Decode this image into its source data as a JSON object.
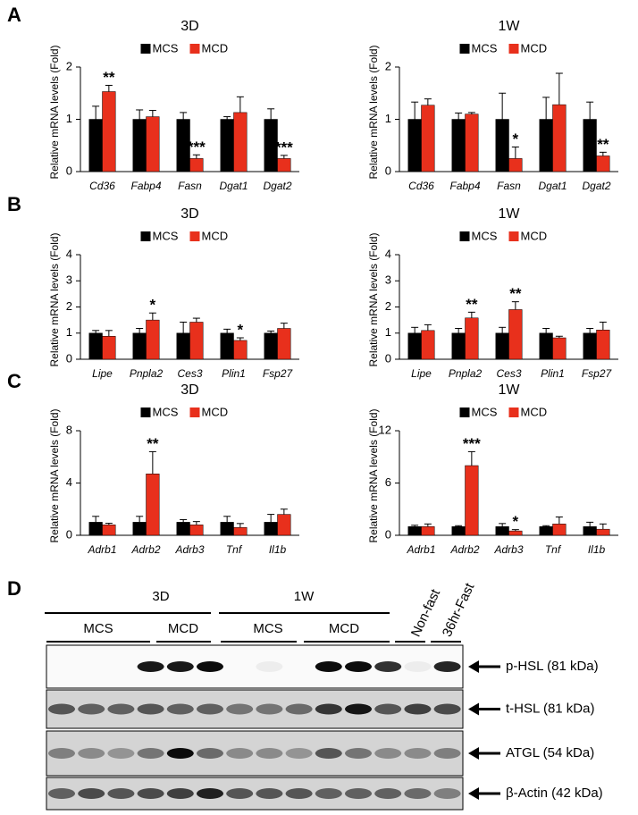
{
  "panels": [
    "A",
    "B",
    "C",
    "D"
  ],
  "chart_data": [
    {
      "type": "bar",
      "title": "3D",
      "ylabel": "Relative mRNA levels (Fold)",
      "categories": [
        "Cd36",
        "Fabp4",
        "Fasn",
        "Dgat1",
        "Dgat2"
      ],
      "ylim": [
        0,
        2
      ],
      "yticks": [
        0,
        1,
        2
      ],
      "series": [
        {
          "name": "MCS",
          "color": "#000000",
          "values": [
            1,
            1,
            1,
            1,
            1
          ],
          "errors": [
            0.25,
            0.18,
            0.13,
            0.05,
            0.2
          ]
        },
        {
          "name": "MCD",
          "color": "#e8301c",
          "values": [
            1.53,
            1.05,
            0.25,
            1.13,
            0.25
          ],
          "errors": [
            0.12,
            0.12,
            0.07,
            0.3,
            0.06
          ],
          "labels": [
            "**",
            null,
            "***",
            null,
            "***"
          ]
        }
      ]
    },
    {
      "type": "bar",
      "title": "1W",
      "ylabel": "Relative mRNA levels (Fold)",
      "categories": [
        "Cd36",
        "Fabp4",
        "Fasn",
        "Dgat1",
        "Dgat2"
      ],
      "ylim": [
        0,
        2
      ],
      "yticks": [
        0,
        1,
        2
      ],
      "series": [
        {
          "name": "MCS",
          "color": "#000000",
          "values": [
            1,
            1,
            1,
            1,
            1
          ],
          "errors": [
            0.33,
            0.12,
            0.5,
            0.42,
            0.33
          ]
        },
        {
          "name": "MCD",
          "color": "#e8301c",
          "values": [
            1.27,
            1.1,
            0.25,
            1.28,
            0.3
          ],
          "errors": [
            0.12,
            0.03,
            0.22,
            0.6,
            0.07
          ],
          "labels": [
            null,
            null,
            "*",
            null,
            "**"
          ]
        }
      ]
    },
    {
      "type": "bar",
      "title": "3D",
      "ylabel": "Relative mRNA levels (Fold)",
      "categories": [
        "Lipe",
        "Pnpla2",
        "Ces3",
        "Plin1",
        "Fsp27"
      ],
      "ylim": [
        0,
        4
      ],
      "yticks": [
        0,
        1,
        2,
        3,
        4
      ],
      "series": [
        {
          "name": "MCS",
          "color": "#000000",
          "values": [
            1,
            1,
            1,
            1,
            1
          ],
          "errors": [
            0.1,
            0.18,
            0.42,
            0.15,
            0.08
          ]
        },
        {
          "name": "MCD",
          "color": "#e8301c",
          "values": [
            0.88,
            1.5,
            1.42,
            0.72,
            1.18
          ],
          "errors": [
            0.22,
            0.27,
            0.15,
            0.1,
            0.2
          ],
          "labels": [
            null,
            "*",
            null,
            "*",
            null
          ]
        }
      ]
    },
    {
      "type": "bar",
      "title": "1W",
      "ylabel": "Relative mRNA levels (Fold)",
      "categories": [
        "Lipe",
        "Pnpla2",
        "Ces3",
        "Plin1",
        "Fsp27"
      ],
      "ylim": [
        0,
        4
      ],
      "yticks": [
        0,
        1,
        2,
        3,
        4
      ],
      "series": [
        {
          "name": "MCS",
          "color": "#000000",
          "values": [
            1,
            1,
            1,
            1,
            1
          ],
          "errors": [
            0.22,
            0.18,
            0.22,
            0.18,
            0.18
          ]
        },
        {
          "name": "MCD",
          "color": "#e8301c",
          "values": [
            1.1,
            1.58,
            1.9,
            0.82,
            1.12
          ],
          "errors": [
            0.22,
            0.22,
            0.3,
            0.06,
            0.3
          ],
          "labels": [
            null,
            "**",
            "**",
            null,
            null
          ]
        }
      ]
    },
    {
      "type": "bar",
      "title": "3D",
      "ylabel": "Relative mRNA levels (Fold)",
      "categories": [
        "Adrb1",
        "Adrb2",
        "Adrb3",
        "Tnf",
        "Il1b"
      ],
      "ylim": [
        0,
        8
      ],
      "yticks": [
        0,
        4,
        8
      ],
      "series": [
        {
          "name": "MCS",
          "color": "#000000",
          "values": [
            1,
            1,
            1,
            1,
            1
          ],
          "errors": [
            0.45,
            0.45,
            0.2,
            0.45,
            0.6
          ]
        },
        {
          "name": "MCD",
          "color": "#e8301c",
          "values": [
            0.8,
            4.7,
            0.8,
            0.6,
            1.6
          ],
          "errors": [
            0.12,
            1.7,
            0.25,
            0.3,
            0.4
          ],
          "labels": [
            null,
            "**",
            null,
            null,
            null
          ]
        }
      ]
    },
    {
      "type": "bar",
      "title": "1W",
      "ylabel": "Relative mRNA levels (Fold)",
      "categories": [
        "Adrb1",
        "Adrb2",
        "Adrb3",
        "Tnf",
        "Il1b"
      ],
      "ylim": [
        0,
        12
      ],
      "yticks": [
        0,
        6,
        12
      ],
      "series": [
        {
          "name": "MCS",
          "color": "#000000",
          "values": [
            1,
            1,
            1,
            1,
            1
          ],
          "errors": [
            0.15,
            0.1,
            0.35,
            0.1,
            0.5
          ]
        },
        {
          "name": "MCD",
          "color": "#e8301c",
          "values": [
            1,
            8,
            0.5,
            1.3,
            0.7
          ],
          "errors": [
            0.3,
            1.6,
            0.15,
            0.8,
            0.6
          ],
          "labels": [
            null,
            "***",
            "*",
            null,
            null
          ]
        }
      ]
    }
  ],
  "blot": {
    "groups": [
      "3D",
      "1W"
    ],
    "subgroups": [
      "MCS",
      "MCD",
      "MCS",
      "MCD"
    ],
    "controls": [
      "Non-fast",
      "36hr-Fast"
    ],
    "rows": [
      "p-HSL (81 kDa)",
      "t-HSL (81 kDa)",
      "ATGL (54 kDa)",
      "β-Actin (42 kDa)"
    ]
  }
}
